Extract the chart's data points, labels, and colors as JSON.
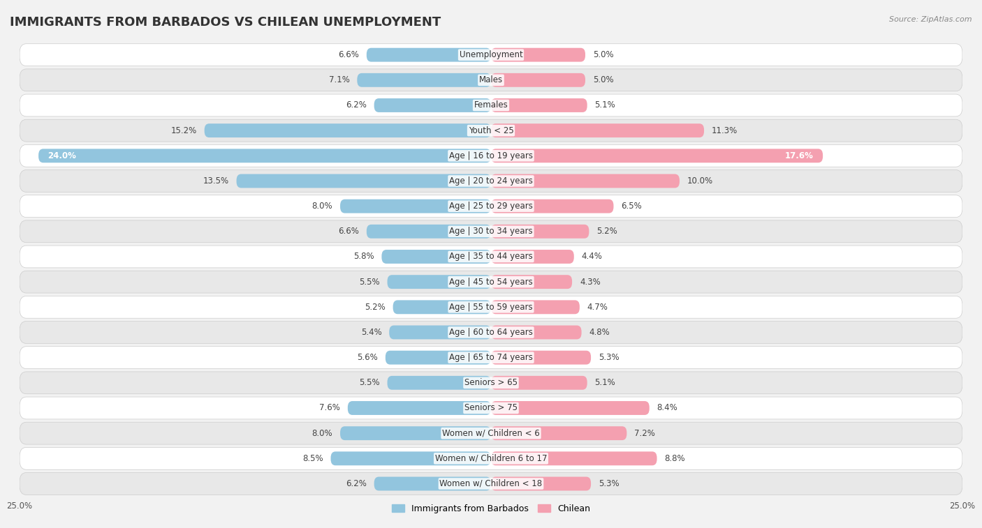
{
  "title": "IMMIGRANTS FROM BARBADOS VS CHILEAN UNEMPLOYMENT",
  "source": "Source: ZipAtlas.com",
  "categories": [
    "Unemployment",
    "Males",
    "Females",
    "Youth < 25",
    "Age | 16 to 19 years",
    "Age | 20 to 24 years",
    "Age | 25 to 29 years",
    "Age | 30 to 34 years",
    "Age | 35 to 44 years",
    "Age | 45 to 54 years",
    "Age | 55 to 59 years",
    "Age | 60 to 64 years",
    "Age | 65 to 74 years",
    "Seniors > 65",
    "Seniors > 75",
    "Women w/ Children < 6",
    "Women w/ Children 6 to 17",
    "Women w/ Children < 18"
  ],
  "barbados_values": [
    6.6,
    7.1,
    6.2,
    15.2,
    24.0,
    13.5,
    8.0,
    6.6,
    5.8,
    5.5,
    5.2,
    5.4,
    5.6,
    5.5,
    7.6,
    8.0,
    8.5,
    6.2
  ],
  "chilean_values": [
    5.0,
    5.0,
    5.1,
    11.3,
    17.6,
    10.0,
    6.5,
    5.2,
    4.4,
    4.3,
    4.7,
    4.8,
    5.3,
    5.1,
    8.4,
    7.2,
    8.8,
    5.3
  ],
  "barbados_color": "#92c5de",
  "chilean_color": "#f4a0b0",
  "axis_limit": 25.0,
  "bar_height": 0.55,
  "background_color": "#f2f2f2",
  "row_color_light": "#ffffff",
  "row_color_dark": "#e8e8e8",
  "legend_label_barbados": "Immigrants from Barbados",
  "legend_label_chilean": "Chilean",
  "title_fontsize": 13,
  "label_fontsize": 8.5,
  "category_fontsize": 8.5
}
